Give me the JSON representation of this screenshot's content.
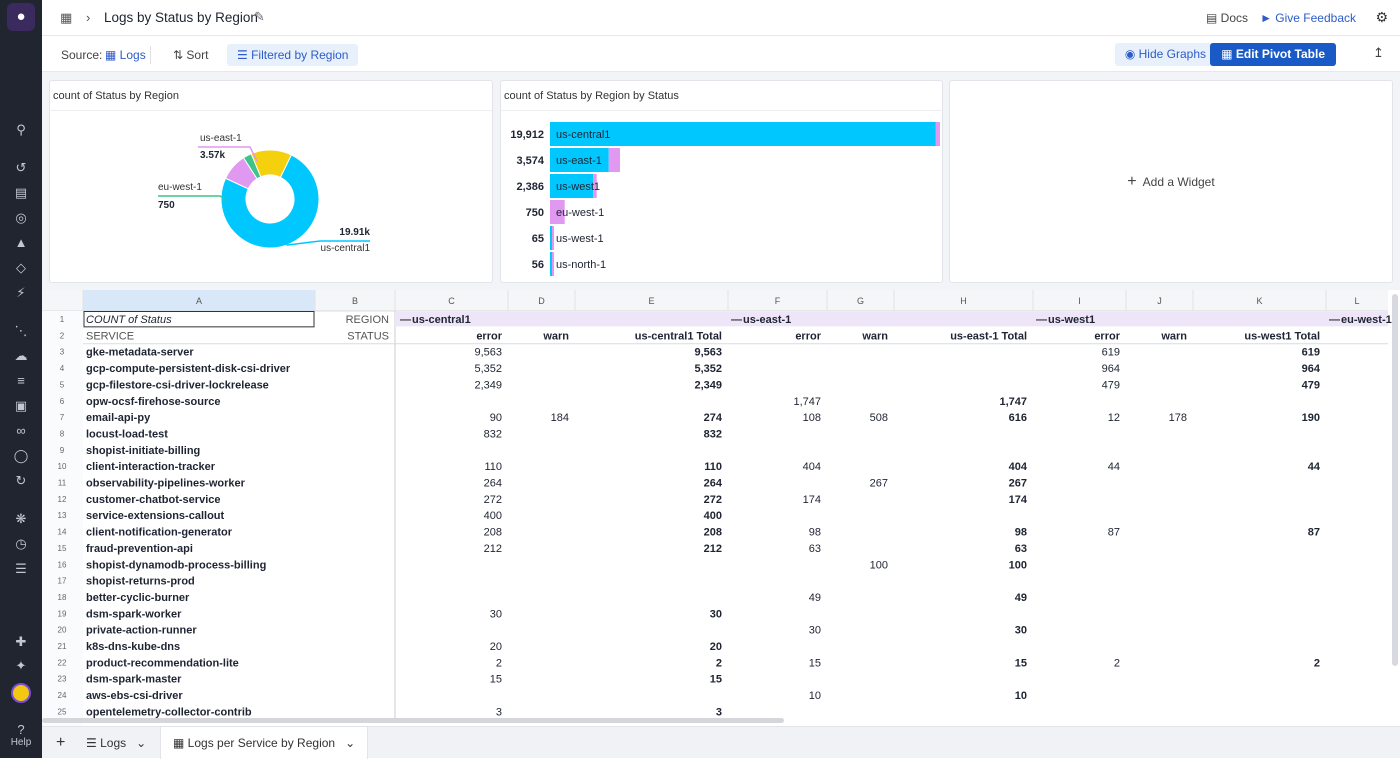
{
  "header": {
    "title": "Logs by Status by Region",
    "docs": "Docs",
    "feedback": "Give Feedback"
  },
  "toolbar": {
    "source_label": "Source:",
    "source_value": "Logs",
    "sort": "Sort",
    "filter": "Filtered by Region",
    "hide_graphs": "Hide Graphs",
    "edit_pivot": "Edit Pivot Table"
  },
  "widgets": {
    "donut": {
      "title": "count of Status by Region"
    },
    "bars": {
      "title": "count of Status by Region by Status"
    },
    "add": "Add a Widget"
  },
  "colors": {
    "cyan": "#00c8ff",
    "violet": "#e098f0",
    "yellow": "#f5d00c",
    "green": "#3ec48a",
    "blue_accent": "#1a5ac6"
  },
  "chart_data": [
    {
      "type": "pie",
      "title": "count of Status by Region",
      "slices": [
        {
          "label": "us-central1",
          "display": "19.91k",
          "value": 19912,
          "color": "#00c8ff"
        },
        {
          "label": "us-west1",
          "display": "",
          "value": 2386,
          "color": "#e098f0"
        },
        {
          "label": "eu-west-1",
          "display": "750",
          "value": 750,
          "color": "#3ec48a"
        },
        {
          "label": "us-east-1",
          "display": "3.57k",
          "value": 3574,
          "color": "#f5d00c"
        }
      ]
    },
    {
      "type": "bar",
      "title": "count of Status by Region by Status",
      "categories": [
        "us-central1",
        "us-east-1",
        "us-west1",
        "eu-west-1",
        "us-west-1",
        "us-north-1"
      ],
      "totals_text": [
        "19,912",
        "3,574",
        "2,386",
        "750",
        "65",
        "56"
      ],
      "series": [
        {
          "values": [
            19700,
            3000,
            2200,
            0,
            60,
            50
          ],
          "color": "#00c8ff"
        },
        {
          "values": [
            212,
            574,
            186,
            750,
            5,
            6
          ],
          "color": "#e098f0"
        }
      ]
    }
  ],
  "grid": {
    "col_letters": [
      "A",
      "B",
      "C",
      "D",
      "E",
      "F",
      "G",
      "H",
      "I",
      "J",
      "K",
      "L"
    ],
    "row1": {
      "a": "COUNT of Status",
      "b": "REGION",
      "regions": [
        "us-central1",
        "us-east-1",
        "us-west1",
        "eu-west-1"
      ]
    },
    "row2": {
      "a": "SERVICE",
      "b": "STATUS",
      "sub": [
        "error",
        "warn",
        "us-central1 Total",
        "error",
        "warn",
        "us-east-1 Total",
        "error",
        "warn",
        "us-west1 Total"
      ]
    },
    "rows": [
      [
        "gke-metadata-server",
        "9,563",
        "",
        "9,563",
        "",
        "",
        "",
        "619",
        "",
        "619"
      ],
      [
        "gcp-compute-persistent-disk-csi-driver",
        "5,352",
        "",
        "5,352",
        "",
        "",
        "",
        "964",
        "",
        "964"
      ],
      [
        "gcp-filestore-csi-driver-lockrelease",
        "2,349",
        "",
        "2,349",
        "",
        "",
        "",
        "479",
        "",
        "479"
      ],
      [
        "opw-ocsf-firehose-source",
        "",
        "",
        "",
        "1,747",
        "",
        "1,747",
        "",
        "",
        ""
      ],
      [
        "email-api-py",
        "90",
        "184",
        "274",
        "108",
        "508",
        "616",
        "12",
        "178",
        "190"
      ],
      [
        "locust-load-test",
        "832",
        "",
        "832",
        "",
        "",
        "",
        "",
        "",
        ""
      ],
      [
        "shopist-initiate-billing",
        "",
        "",
        "",
        "",
        "",
        "",
        "",
        "",
        ""
      ],
      [
        "client-interaction-tracker",
        "110",
        "",
        "110",
        "404",
        "",
        "404",
        "44",
        "",
        "44"
      ],
      [
        "observability-pipelines-worker",
        "264",
        "",
        "264",
        "",
        "267",
        "267",
        "",
        "",
        ""
      ],
      [
        "customer-chatbot-service",
        "272",
        "",
        "272",
        "174",
        "",
        "174",
        "",
        "",
        ""
      ],
      [
        "service-extensions-callout",
        "400",
        "",
        "400",
        "",
        "",
        "",
        "",
        "",
        ""
      ],
      [
        "client-notification-generator",
        "208",
        "",
        "208",
        "98",
        "",
        "98",
        "87",
        "",
        "87"
      ],
      [
        "fraud-prevention-api",
        "212",
        "",
        "212",
        "63",
        "",
        "63",
        "",
        "",
        ""
      ],
      [
        "shopist-dynamodb-process-billing",
        "",
        "",
        "",
        "",
        "100",
        "100",
        "",
        "",
        ""
      ],
      [
        "shopist-returns-prod",
        "",
        "",
        "",
        "",
        "",
        "",
        "",
        "",
        ""
      ],
      [
        "better-cyclic-burner",
        "",
        "",
        "",
        "49",
        "",
        "49",
        "",
        "",
        ""
      ],
      [
        "dsm-spark-worker",
        "30",
        "",
        "30",
        "",
        "",
        "",
        "",
        "",
        ""
      ],
      [
        "private-action-runner",
        "",
        "",
        "",
        "30",
        "",
        "30",
        "",
        "",
        ""
      ],
      [
        "k8s-dns-kube-dns",
        "20",
        "",
        "20",
        "",
        "",
        "",
        "",
        "",
        ""
      ],
      [
        "product-recommendation-lite",
        "2",
        "",
        "2",
        "15",
        "",
        "15",
        "2",
        "",
        "2"
      ],
      [
        "dsm-spark-master",
        "15",
        "",
        "15",
        "",
        "",
        "",
        "",
        "",
        ""
      ],
      [
        "aws-ebs-csi-driver",
        "",
        "",
        "",
        "10",
        "",
        "10",
        "",
        "",
        ""
      ],
      [
        "opentelemetry-collector-contrib",
        "3",
        "",
        "3",
        "",
        "",
        "",
        "",
        "",
        ""
      ]
    ]
  },
  "bottom_tabs": {
    "add": "+",
    "logs": "Logs",
    "sheet": "Logs per Service by Region"
  },
  "nav": {
    "help": "Help"
  }
}
